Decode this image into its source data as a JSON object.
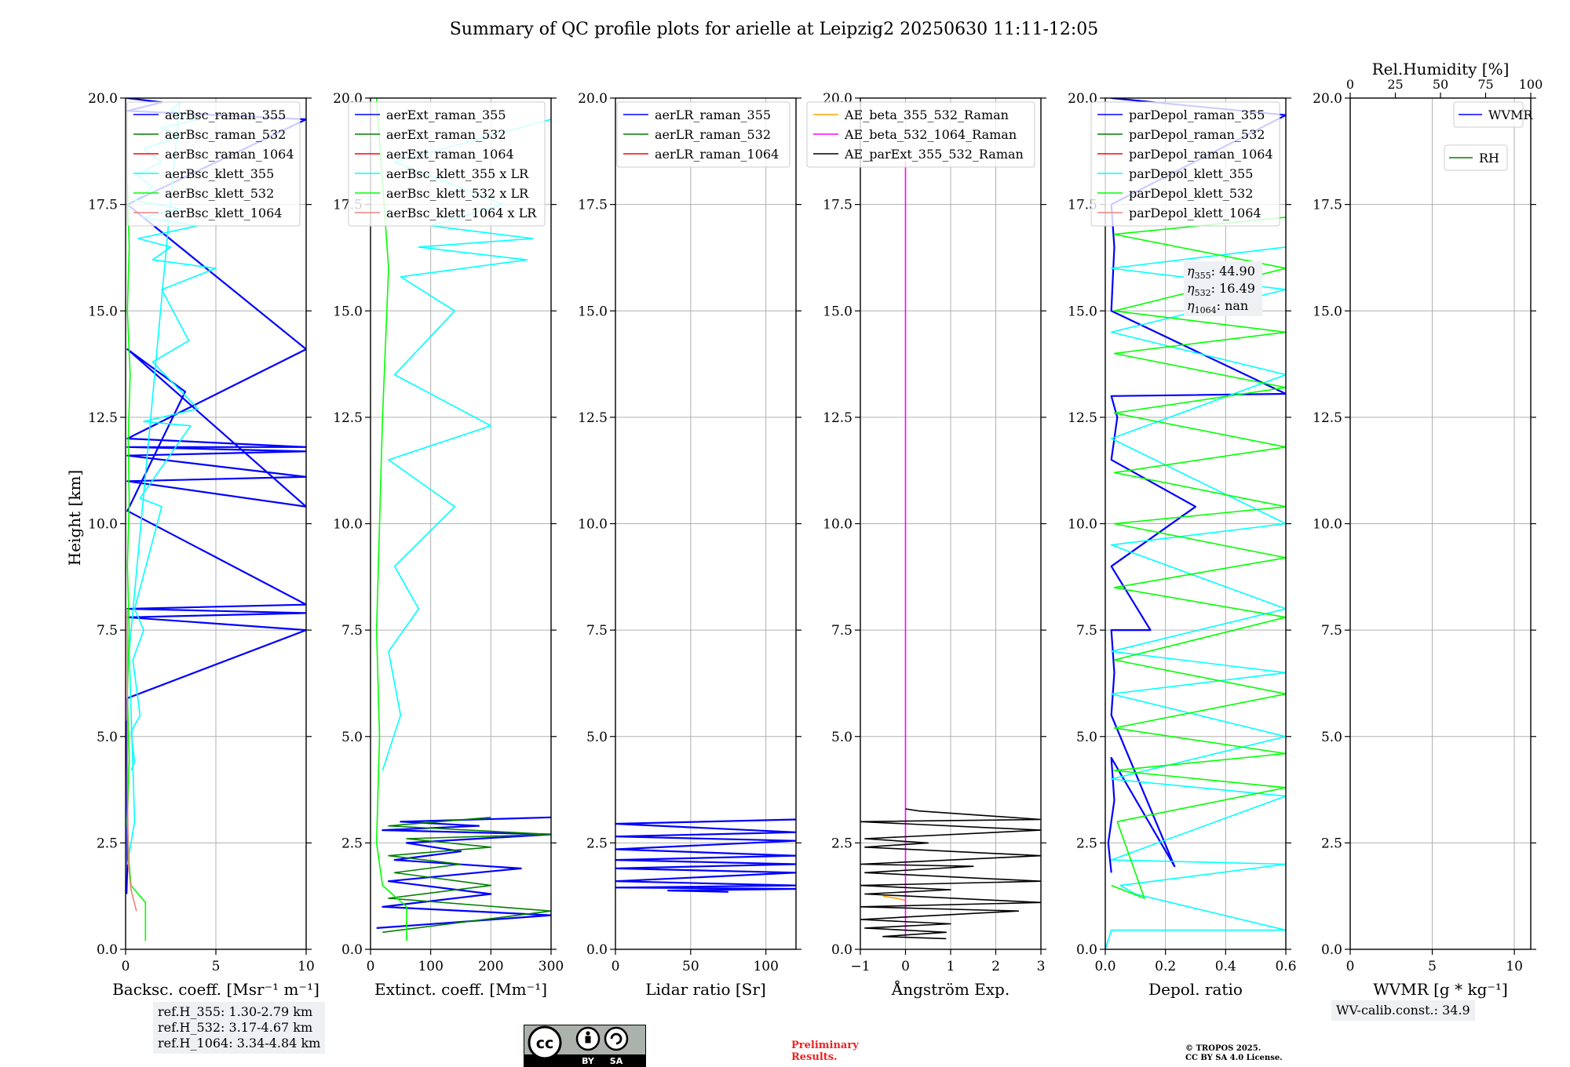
{
  "title": "Summary of QC profile plots for arielle at Leipzig2 20250630 11:11-12:05",
  "colors": {
    "blue": "#0000ff",
    "green": "#008000",
    "red": "#ff0000",
    "cyan": "#00ffff",
    "lime": "#00ff00",
    "salmon": "#f08080",
    "orange": "#ffa500",
    "magenta": "#ff00ff",
    "black": "#000000",
    "darkblue": "#00008b"
  },
  "ref_box": [
    "ref.H_355: 1.30-2.79 km",
    "ref.H_532: 3.17-4.67 km",
    "ref.H_1064: 3.34-4.84 km"
  ],
  "wv_box": "WV-calib.const.: 34.9",
  "prelim": [
    "Preliminary",
    "Results."
  ],
  "copyright": [
    "© TROPOS 2025.",
    "CC BY SA 4.0 License."
  ],
  "license_icon": {
    "labels": [
      "BY",
      "SA"
    ],
    "name": "cc-by-sa-icon"
  },
  "chart_data": [
    {
      "id": "backscatter",
      "type": "line",
      "xlabel": "Backsc. coeff. [Msr$^{-1}$ m$^{-1}$]",
      "xlabel_display": "Backsc. coeff. [Msr⁻¹ m⁻¹]",
      "ylabel": "Height [km]",
      "xlim": [
        0,
        10
      ],
      "ylim": [
        0,
        20
      ],
      "xticks": [
        "0",
        "5",
        "10"
      ],
      "yticks": [
        "0.0",
        "2.5",
        "5.0",
        "7.5",
        "10.0",
        "12.5",
        "15.0",
        "17.5",
        "20.0"
      ],
      "grid": true,
      "legend": "top-right",
      "series": [
        {
          "name": "aerBsc_raman_355",
          "color": "#0000ff",
          "x": [
            0.05,
            0.1,
            0.1,
            0.05,
            0.1,
            0.1,
            10,
            0.1,
            10,
            0.1,
            10,
            0.1,
            3.3,
            0.1,
            10,
            0.1,
            10,
            0.1,
            10,
            0.1,
            10,
            0.1,
            10,
            0.1,
            10,
            0.1,
            2.0,
            0.1,
            0.5
          ],
          "y": [
            1.3,
            2.0,
            3.0,
            5.3,
            5.4,
            5.9,
            7.5,
            7.8,
            7.9,
            8.0,
            8.1,
            10.3,
            13.1,
            14.1,
            10.4,
            11.0,
            11.1,
            11.6,
            11.7,
            11.8,
            11.8,
            12.0,
            14.1,
            17.5,
            19.5,
            19.7,
            19.9,
            20.0,
            20.0
          ]
        },
        {
          "name": "aerBsc_raman_532",
          "color": "#008000",
          "x": [],
          "y": []
        },
        {
          "name": "aerBsc_raman_1064",
          "color": "#ff0000",
          "x": [],
          "y": []
        },
        {
          "name": "aerBsc_klett_355",
          "color": "#00ffff",
          "x": [
            0.3,
            0.5,
            0.3,
            0.8,
            0.4,
            1.0,
            0.5,
            2.0,
            0.8,
            3.6,
            1.0,
            4.0,
            1.5,
            3.5,
            2.0,
            5.0,
            1.5,
            2.5,
            0.7,
            4.0,
            1.0,
            3.0,
            0.5,
            1.5,
            0.6,
            2.0,
            1.0,
            3.0,
            2.0,
            4.0,
            2.5,
            3.0,
            0.2,
            0.5,
            0.1
          ],
          "y": [
            4.2,
            4.4,
            5.1,
            5.5,
            6.8,
            7.5,
            8.0,
            10.4,
            10.6,
            12.3,
            12.4,
            12.7,
            13.8,
            14.3,
            15.5,
            16.0,
            16.2,
            16.5,
            16.7,
            17.0,
            17.2,
            17.4,
            17.6,
            17.9,
            18.2,
            18.5,
            18.8,
            19.1,
            19.3,
            19.5,
            19.7,
            19.9,
            7.0,
            3.0,
            2.0
          ]
        },
        {
          "name": "aerBsc_klett_532",
          "color": "#00ff00",
          "x": [
            1.1,
            1.1,
            0.3,
            0.2,
            0.1,
            0.2,
            0.1,
            0.2,
            0.1,
            0.2,
            0.15,
            0.25,
            0.1,
            0.2,
            0.1
          ],
          "y": [
            0.2,
            1.1,
            1.5,
            2.0,
            3.0,
            4.5,
            6.0,
            7.5,
            9.0,
            10.5,
            12.0,
            13.5,
            15.0,
            16.5,
            18.0
          ]
        },
        {
          "name": "aerBsc_klett_1064",
          "color": "#f08080",
          "x": [
            0.6,
            0.3,
            0.15,
            0.1,
            0.1
          ],
          "y": [
            0.9,
            1.4,
            2.0,
            4.0,
            8.0
          ]
        }
      ]
    },
    {
      "id": "extinction",
      "type": "line",
      "xlabel": "Extinct. coeff. [Mm$^{-1}$]",
      "xlabel_display": "Extinct. coeff. [Mm⁻¹]",
      "xlim": [
        0,
        300
      ],
      "ylim": [
        0,
        20
      ],
      "xticks": [
        "0",
        "100",
        "200",
        "300"
      ],
      "yticks": [
        "0.0",
        "2.5",
        "5.0",
        "7.5",
        "10.0",
        "12.5",
        "15.0",
        "17.5",
        "20.0"
      ],
      "grid": true,
      "legend": "top-right",
      "series": [
        {
          "name": "aerExt_raman_355",
          "color": "#0000ff",
          "x": [
            10,
            300,
            20,
            200,
            30,
            250,
            40,
            150,
            60,
            300,
            20,
            180,
            50,
            300
          ],
          "y": [
            0.5,
            0.8,
            1.0,
            1.3,
            1.6,
            1.9,
            2.1,
            2.3,
            2.5,
            2.7,
            2.8,
            2.9,
            3.0,
            3.1
          ]
        },
        {
          "name": "aerExt_raman_532",
          "color": "#008000",
          "x": [
            20,
            300,
            30,
            200,
            40,
            150,
            30,
            200,
            60,
            300,
            30,
            200
          ],
          "y": [
            0.4,
            0.9,
            1.2,
            1.5,
            1.8,
            2.0,
            2.2,
            2.4,
            2.6,
            2.7,
            2.9,
            3.1
          ]
        },
        {
          "name": "aerExt_raman_1064",
          "color": "#ff0000",
          "x": [],
          "y": []
        },
        {
          "name": "aerBsc_klett_355 x LR",
          "color": "#00ffff",
          "x": [
            20,
            50,
            30,
            80,
            40,
            140,
            30,
            200,
            40,
            140,
            50,
            260,
            80,
            270,
            100,
            220,
            40,
            300
          ],
          "y": [
            4.2,
            5.5,
            7.0,
            8.0,
            9.0,
            10.4,
            11.5,
            12.3,
            13.5,
            15.0,
            15.8,
            16.2,
            16.5,
            16.7,
            17.0,
            17.5,
            18.5,
            19.5
          ]
        },
        {
          "name": "aerBsc_klett_532 x LR",
          "color": "#00ff00",
          "x": [
            60,
            60,
            20,
            10,
            15,
            10,
            20,
            30,
            20,
            10
          ],
          "y": [
            0.2,
            1.0,
            1.5,
            2.5,
            5.0,
            7.5,
            12.5,
            16.0,
            18.0,
            20.0
          ]
        },
        {
          "name": "aerBsc_klett_1064 x LR",
          "color": "#f08080",
          "x": [],
          "y": []
        }
      ]
    },
    {
      "id": "lidar_ratio",
      "type": "line",
      "xlabel": "Lidar ratio [Sr]",
      "xlim": [
        0,
        120
      ],
      "ylim": [
        0,
        20
      ],
      "xticks": [
        "0",
        "50",
        "100"
      ],
      "yticks": [
        "0.0",
        "2.5",
        "5.0",
        "7.5",
        "10.0",
        "12.5",
        "15.0",
        "17.5",
        "20.0"
      ],
      "grid": true,
      "legend": "top-right",
      "series": [
        {
          "name": "aerLR_raman_355",
          "color": "#0000ff",
          "x": [
            120,
            0,
            120,
            0,
            120,
            0,
            120,
            0,
            120,
            0,
            120,
            0,
            120,
            0,
            120,
            35,
            75
          ],
          "y": [
            3.05,
            2.95,
            2.75,
            2.65,
            2.55,
            2.35,
            2.2,
            2.1,
            2.0,
            1.9,
            1.8,
            1.6,
            1.5,
            1.45,
            1.42,
            1.38,
            1.35
          ]
        },
        {
          "name": "aerLR_raman_532",
          "color": "#008000",
          "x": [],
          "y": []
        },
        {
          "name": "aerLR_raman_1064",
          "color": "#ff0000",
          "x": [],
          "y": []
        }
      ]
    },
    {
      "id": "angstrom",
      "type": "line",
      "xlabel": "Ångström Exp.",
      "xlim": [
        -1,
        3
      ],
      "ylim": [
        0,
        20
      ],
      "xticks": [
        "−1",
        "0",
        "1",
        "2",
        "3"
      ],
      "yticks": [
        "0.0",
        "2.5",
        "5.0",
        "7.5",
        "10.0",
        "12.5",
        "15.0",
        "17.5",
        "20.0"
      ],
      "grid": true,
      "legend": "top-right",
      "series": [
        {
          "name": "AE_beta_355_532_Raman",
          "color": "#ffa500",
          "x": [
            -0.5,
            -0.2,
            0.0
          ],
          "y": [
            1.25,
            1.2,
            1.15
          ]
        },
        {
          "name": "AE_beta_532_1064_Raman",
          "color": "#ff00ff",
          "x": [
            0.0,
            0.0
          ],
          "y": [
            0.3,
            18.5
          ]
        },
        {
          "name": "AE_parExt_355_532_Raman",
          "color": "#000000",
          "x": [
            0.0,
            0.3,
            3.0,
            -1,
            3.0,
            -0.9,
            0.5,
            -0.9,
            3.0,
            -1,
            1.5,
            -0.9,
            3.0,
            -1,
            1.0,
            -0.9,
            3.0,
            -1,
            2.5,
            -1,
            1.0,
            -0.9,
            0.9,
            -0.5,
            0.9
          ],
          "y": [
            3.3,
            3.25,
            3.05,
            3.0,
            2.8,
            2.6,
            2.5,
            2.4,
            2.2,
            2.0,
            1.95,
            1.8,
            1.6,
            1.5,
            1.4,
            1.3,
            1.1,
            1.0,
            0.9,
            0.7,
            0.6,
            0.5,
            0.4,
            0.3,
            0.25
          ]
        }
      ]
    },
    {
      "id": "depol",
      "type": "line",
      "xlabel": "Depol. ratio",
      "xlim": [
        0,
        0.6
      ],
      "ylim": [
        0,
        20
      ],
      "xticks": [
        "0.0",
        "0.2",
        "0.4",
        "0.6"
      ],
      "yticks": [
        "0.0",
        "2.5",
        "5.0",
        "7.5",
        "10.0",
        "12.5",
        "15.0",
        "17.5",
        "20.0"
      ],
      "grid": true,
      "legend": "top-right",
      "annotation": [
        {
          "sym": "η",
          "sub": "355",
          "value": ": 44.90"
        },
        {
          "sym": "η",
          "sub": "532",
          "value": ": 16.49"
        },
        {
          "sym": "η",
          "sub": "1064",
          "value": ": nan"
        }
      ],
      "series": [
        {
          "name": "parDepol_raman_355",
          "color": "#0000ff",
          "x": [
            0.02,
            0.01,
            0.03,
            0.02,
            0.23,
            0.02,
            0.03,
            0.02,
            0.15,
            0.02,
            0.3,
            0.02,
            0.04,
            0.02,
            0.6,
            0.02,
            0.03,
            0.02,
            0.6,
            0.02
          ],
          "y": [
            1.8,
            2.5,
            3.5,
            4.5,
            1.95,
            5.5,
            6.5,
            7.5,
            7.5,
            9.0,
            10.4,
            11.5,
            12.5,
            13.0,
            13.05,
            15.0,
            16.5,
            17.5,
            19.6,
            20.0
          ]
        },
        {
          "name": "parDepol_raman_532",
          "color": "#008000",
          "x": [],
          "y": []
        },
        {
          "name": "parDepol_raman_1064",
          "color": "#ff0000",
          "x": [],
          "y": []
        },
        {
          "name": "parDepol_klett_355",
          "color": "#00ffff",
          "x": [
            0.0,
            0.02,
            0.6,
            0.1,
            0.05,
            0.6,
            0.02,
            0.6,
            0.02,
            0.6,
            0.02,
            0.6,
            0.02,
            0.6,
            0.02,
            0.6,
            0.02,
            0.6,
            0.02,
            0.6,
            0.02,
            0.6
          ],
          "y": [
            0.0,
            0.45,
            0.45,
            1.3,
            1.5,
            2.0,
            2.1,
            3.6,
            4.0,
            5.0,
            6.0,
            6.5,
            7.0,
            8.0,
            9.5,
            10.0,
            12.0,
            13.5,
            14.5,
            15.5,
            16.0,
            16.5
          ]
        },
        {
          "name": "parDepol_klett_532",
          "color": "#00ff00",
          "x": [
            0.02,
            0.13,
            0.04,
            0.6,
            0.03,
            0.6,
            0.03,
            0.6,
            0.03,
            0.6,
            0.03,
            0.6,
            0.03,
            0.6,
            0.03,
            0.6,
            0.03,
            0.6,
            0.03,
            0.6,
            0.03,
            0.6,
            0.03,
            0.6
          ],
          "y": [
            1.5,
            1.2,
            3.0,
            3.8,
            4.2,
            4.6,
            5.2,
            6.0,
            6.8,
            7.8,
            8.5,
            9.2,
            10.0,
            10.4,
            11.2,
            11.8,
            12.6,
            13.2,
            14.0,
            14.5,
            15.0,
            16.0,
            16.8,
            17.2
          ]
        },
        {
          "name": "parDepol_klett_1064",
          "color": "#f08080",
          "x": [],
          "y": []
        }
      ]
    },
    {
      "id": "wvmr",
      "type": "line",
      "xlabel": "WVMR [$g*kg^{-1}$]",
      "xlabel_display": "WVMR [g * kg⁻¹]",
      "x2label": "Rel.Humidity [%]",
      "xlim": [
        0,
        11
      ],
      "x2lim": [
        0,
        100
      ],
      "ylim": [
        0,
        20
      ],
      "xticks": [
        "0",
        "5",
        "10"
      ],
      "x2ticks": [
        "0",
        "25",
        "50",
        "75",
        "100"
      ],
      "yticks": [
        "0.0",
        "2.5",
        "5.0",
        "7.5",
        "10.0",
        "12.5",
        "15.0",
        "17.5",
        "20.0"
      ],
      "grid": true,
      "legend": "top-right",
      "series": [
        {
          "name": "WVMR",
          "color": "#0000ff",
          "x": [],
          "y": []
        },
        {
          "name": "RH",
          "color": "#008000",
          "x": [],
          "y": []
        }
      ]
    }
  ]
}
